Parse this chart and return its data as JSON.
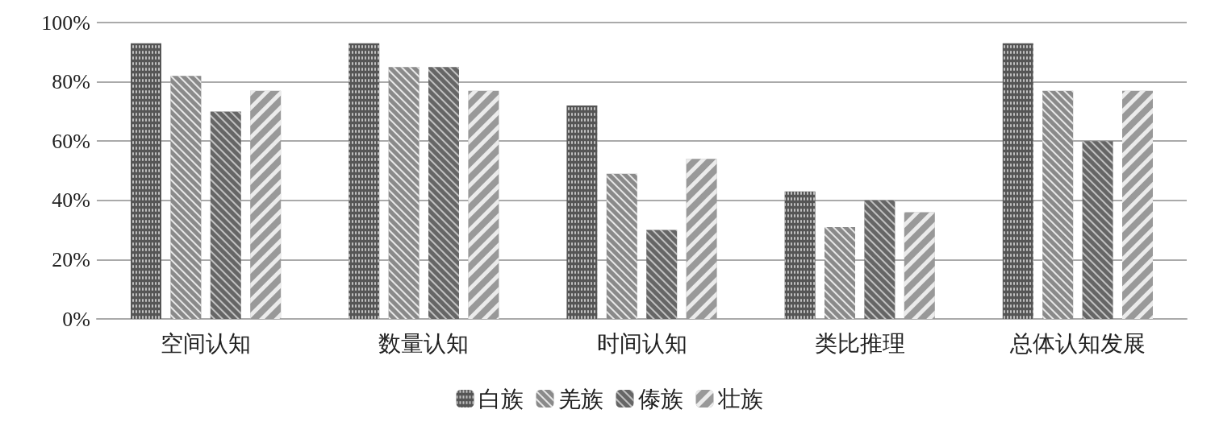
{
  "chart_data": {
    "type": "bar",
    "categories": [
      "空间认知",
      "数量认知",
      "时间认知",
      "类比推理",
      "总体认知发展"
    ],
    "series": [
      {
        "name": "白族",
        "color": "#555555",
        "values": [
          93,
          93,
          72,
          43,
          93
        ]
      },
      {
        "name": "羌族",
        "color": "#8a8a8a",
        "values": [
          82,
          85,
          49,
          31,
          77
        ]
      },
      {
        "name": "傣族",
        "color": "#666666",
        "values": [
          70,
          85,
          30,
          40,
          60
        ]
      },
      {
        "name": "壮族",
        "color": "#999999",
        "values": [
          77,
          77,
          54,
          36,
          77
        ]
      }
    ],
    "ylim": [
      0,
      100
    ],
    "yticks": [
      {
        "value": 0,
        "label": "0%"
      },
      {
        "value": 20,
        "label": "20%"
      },
      {
        "value": 40,
        "label": "40%"
      },
      {
        "value": 60,
        "label": "60%"
      },
      {
        "value": 80,
        "label": "80%"
      },
      {
        "value": 100,
        "label": "100%"
      }
    ],
    "grid": "y",
    "legend": "bottom"
  }
}
